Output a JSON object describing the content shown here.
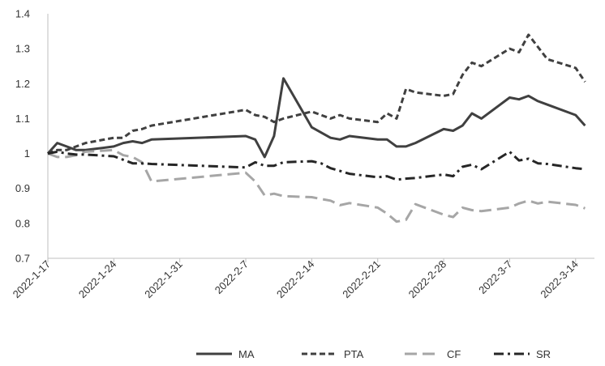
{
  "chart_data": {
    "type": "line",
    "title": "",
    "xlabel": "",
    "ylabel": "",
    "ylim": [
      0.7,
      1.4
    ],
    "y_ticks": [
      "0.7",
      "0.8",
      "0.9",
      "1",
      "1.1",
      "1.2",
      "1.3",
      "1.4"
    ],
    "x_tick_labels": [
      "2022-1-17",
      "2022-1-24",
      "2022-1-31",
      "2022-2-7",
      "2022-2-14",
      "2022-2-21",
      "2022-2-28",
      "2022-3-7",
      "2022-3-14"
    ],
    "x_start": "2022-1-17",
    "x_end": "2022-3-16",
    "grid": false,
    "legend_position": "bottom",
    "series": [
      {
        "name": "MA",
        "style": "solid",
        "color": "#404040",
        "points": [
          [
            "2022-1-17",
            1.0
          ],
          [
            "2022-1-18",
            1.03
          ],
          [
            "2022-1-19",
            1.02
          ],
          [
            "2022-1-20",
            1.01
          ],
          [
            "2022-1-21",
            1.01
          ],
          [
            "2022-1-24",
            1.02
          ],
          [
            "2022-1-25",
            1.03
          ],
          [
            "2022-1-26",
            1.035
          ],
          [
            "2022-1-27",
            1.03
          ],
          [
            "2022-1-28",
            1.04
          ],
          [
            "2022-2-7",
            1.05
          ],
          [
            "2022-2-8",
            1.04
          ],
          [
            "2022-2-9",
            0.99
          ],
          [
            "2022-2-10",
            1.05
          ],
          [
            "2022-2-11",
            1.215
          ],
          [
            "2022-2-14",
            1.075
          ],
          [
            "2022-2-15",
            1.06
          ],
          [
            "2022-2-16",
            1.045
          ],
          [
            "2022-2-17",
            1.04
          ],
          [
            "2022-2-18",
            1.05
          ],
          [
            "2022-2-21",
            1.04
          ],
          [
            "2022-2-22",
            1.04
          ],
          [
            "2022-2-23",
            1.02
          ],
          [
            "2022-2-24",
            1.02
          ],
          [
            "2022-2-25",
            1.03
          ],
          [
            "2022-2-28",
            1.07
          ],
          [
            "2022-3-1",
            1.065
          ],
          [
            "2022-3-2",
            1.08
          ],
          [
            "2022-3-3",
            1.115
          ],
          [
            "2022-3-4",
            1.1
          ],
          [
            "2022-3-7",
            1.16
          ],
          [
            "2022-3-8",
            1.155
          ],
          [
            "2022-3-9",
            1.165
          ],
          [
            "2022-3-10",
            1.15
          ],
          [
            "2022-3-11",
            1.14
          ],
          [
            "2022-3-14",
            1.11
          ],
          [
            "2022-3-15",
            1.08
          ]
        ]
      },
      {
        "name": "PTA",
        "style": "dash",
        "color": "#404040",
        "points": [
          [
            "2022-1-17",
            1.0
          ],
          [
            "2022-1-18",
            1.01
          ],
          [
            "2022-1-19",
            1.01
          ],
          [
            "2022-1-20",
            1.02
          ],
          [
            "2022-1-21",
            1.03
          ],
          [
            "2022-1-24",
            1.045
          ],
          [
            "2022-1-25",
            1.045
          ],
          [
            "2022-1-26",
            1.065
          ],
          [
            "2022-1-27",
            1.07
          ],
          [
            "2022-1-28",
            1.08
          ],
          [
            "2022-2-7",
            1.125
          ],
          [
            "2022-2-8",
            1.11
          ],
          [
            "2022-2-9",
            1.105
          ],
          [
            "2022-2-10",
            1.09
          ],
          [
            "2022-2-11",
            1.1
          ],
          [
            "2022-2-14",
            1.12
          ],
          [
            "2022-2-15",
            1.11
          ],
          [
            "2022-2-16",
            1.1
          ],
          [
            "2022-2-17",
            1.11
          ],
          [
            "2022-2-18",
            1.1
          ],
          [
            "2022-2-21",
            1.09
          ],
          [
            "2022-2-22",
            1.115
          ],
          [
            "2022-2-23",
            1.1
          ],
          [
            "2022-2-24",
            1.185
          ],
          [
            "2022-2-25",
            1.175
          ],
          [
            "2022-2-28",
            1.165
          ],
          [
            "2022-3-1",
            1.17
          ],
          [
            "2022-3-2",
            1.225
          ],
          [
            "2022-3-3",
            1.26
          ],
          [
            "2022-3-4",
            1.25
          ],
          [
            "2022-3-7",
            1.3
          ],
          [
            "2022-3-8",
            1.29
          ],
          [
            "2022-3-9",
            1.34
          ],
          [
            "2022-3-10",
            1.305
          ],
          [
            "2022-3-11",
            1.27
          ],
          [
            "2022-3-14",
            1.245
          ],
          [
            "2022-3-15",
            1.205
          ]
        ]
      },
      {
        "name": "CF",
        "style": "longdash",
        "color": "#a6a6a6",
        "points": [
          [
            "2022-1-17",
            1.0
          ],
          [
            "2022-1-18",
            0.99
          ],
          [
            "2022-1-19",
            0.99
          ],
          [
            "2022-1-20",
            0.995
          ],
          [
            "2022-1-21",
            1.005
          ],
          [
            "2022-1-24",
            1.01
          ],
          [
            "2022-1-25",
            0.995
          ],
          [
            "2022-1-26",
            0.99
          ],
          [
            "2022-1-27",
            0.975
          ],
          [
            "2022-1-28",
            0.92
          ],
          [
            "2022-2-7",
            0.945
          ],
          [
            "2022-2-8",
            0.92
          ],
          [
            "2022-2-9",
            0.88
          ],
          [
            "2022-2-10",
            0.885
          ],
          [
            "2022-2-11",
            0.878
          ],
          [
            "2022-2-14",
            0.875
          ],
          [
            "2022-2-15",
            0.87
          ],
          [
            "2022-2-16",
            0.865
          ],
          [
            "2022-2-17",
            0.852
          ],
          [
            "2022-2-18",
            0.858
          ],
          [
            "2022-2-21",
            0.845
          ],
          [
            "2022-2-22",
            0.828
          ],
          [
            "2022-2-23",
            0.805
          ],
          [
            "2022-2-24",
            0.81
          ],
          [
            "2022-2-25",
            0.855
          ],
          [
            "2022-2-28",
            0.825
          ],
          [
            "2022-3-1",
            0.818
          ],
          [
            "2022-3-2",
            0.845
          ],
          [
            "2022-3-3",
            0.838
          ],
          [
            "2022-3-4",
            0.835
          ],
          [
            "2022-3-7",
            0.845
          ],
          [
            "2022-3-8",
            0.857
          ],
          [
            "2022-3-9",
            0.865
          ],
          [
            "2022-3-10",
            0.857
          ],
          [
            "2022-3-11",
            0.862
          ],
          [
            "2022-3-14",
            0.853
          ],
          [
            "2022-3-15",
            0.843
          ]
        ]
      },
      {
        "name": "SR",
        "style": "dashdot",
        "color": "#262626",
        "points": [
          [
            "2022-1-17",
            1.0
          ],
          [
            "2022-1-18",
            1.005
          ],
          [
            "2022-1-19",
            1.0
          ],
          [
            "2022-1-20",
            0.997
          ],
          [
            "2022-1-21",
            0.997
          ],
          [
            "2022-1-24",
            0.992
          ],
          [
            "2022-1-25",
            0.982
          ],
          [
            "2022-1-26",
            0.972
          ],
          [
            "2022-1-27",
            0.972
          ],
          [
            "2022-1-28",
            0.97
          ],
          [
            "2022-2-7",
            0.96
          ],
          [
            "2022-2-8",
            0.975
          ],
          [
            "2022-2-9",
            0.965
          ],
          [
            "2022-2-10",
            0.965
          ],
          [
            "2022-2-11",
            0.975
          ],
          [
            "2022-2-14",
            0.978
          ],
          [
            "2022-2-15",
            0.972
          ],
          [
            "2022-2-16",
            0.958
          ],
          [
            "2022-2-17",
            0.95
          ],
          [
            "2022-2-18",
            0.942
          ],
          [
            "2022-2-21",
            0.932
          ],
          [
            "2022-2-22",
            0.935
          ],
          [
            "2022-2-23",
            0.925
          ],
          [
            "2022-2-24",
            0.928
          ],
          [
            "2022-2-25",
            0.93
          ],
          [
            "2022-2-28",
            0.94
          ],
          [
            "2022-3-1",
            0.935
          ],
          [
            "2022-3-2",
            0.962
          ],
          [
            "2022-3-3",
            0.968
          ],
          [
            "2022-3-4",
            0.955
          ],
          [
            "2022-3-7",
            1.005
          ],
          [
            "2022-3-8",
            0.98
          ],
          [
            "2022-3-9",
            0.985
          ],
          [
            "2022-3-10",
            0.972
          ],
          [
            "2022-3-11",
            0.97
          ],
          [
            "2022-3-14",
            0.958
          ],
          [
            "2022-3-15",
            0.955
          ]
        ]
      }
    ]
  }
}
